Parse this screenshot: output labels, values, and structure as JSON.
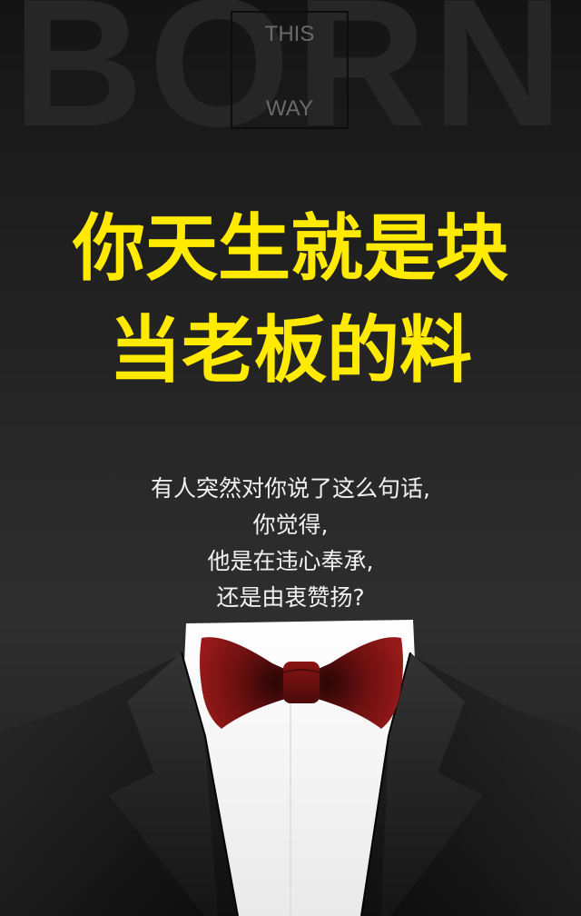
{
  "background_word": "BORN",
  "badge": {
    "line1": "THIS",
    "line2": "WAY"
  },
  "headline": {
    "line1": "你天生就是块",
    "line2": "当老板的料"
  },
  "subtext": [
    "有人突然对你说了这么句话,",
    "你觉得,",
    "他是在违心奉承,",
    "还是由衷赞扬?"
  ],
  "colors": {
    "headline": "#ffea00",
    "bowtie": "#8b1414",
    "suit": "#111111",
    "shirt": "#ffffff"
  }
}
